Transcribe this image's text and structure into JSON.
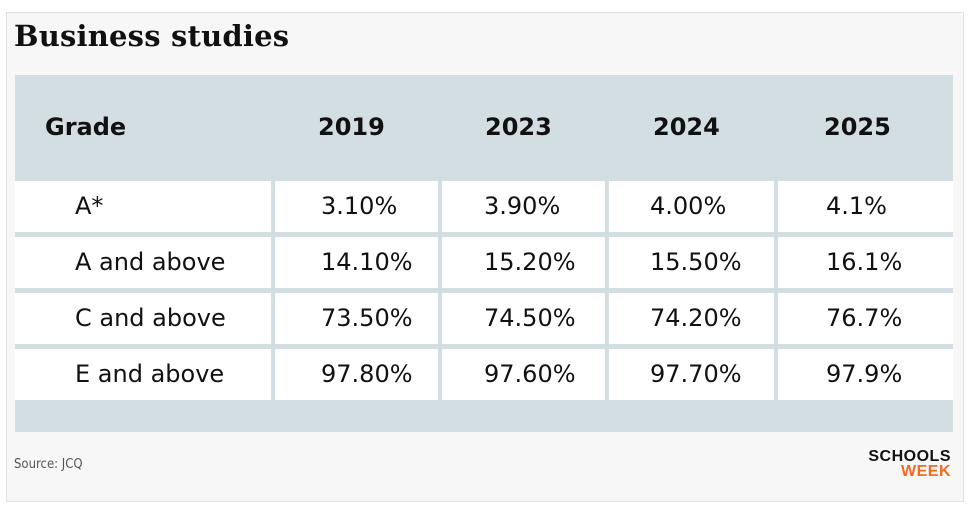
{
  "title": "Business studies",
  "source": "Source: JCQ",
  "brand": {
    "line1": "SCHOOLS",
    "line2": "WEEK",
    "accent": "#f26b21"
  },
  "colors": {
    "header_bg": "#d3dee3",
    "row_bg": "#ffffff",
    "card_bg": "#f7f7f7"
  },
  "chart_data": {
    "type": "table",
    "title": "Business studies",
    "columns": [
      "Grade",
      "2019",
      "2023",
      "2024",
      "2025"
    ],
    "rows": [
      [
        "A*",
        "3.10%",
        "3.90%",
        "4.00%",
        "4.1%"
      ],
      [
        "A and above",
        "14.10%",
        "15.20%",
        "15.50%",
        "16.1%"
      ],
      [
        "C and above",
        "73.50%",
        "74.50%",
        "74.20%",
        "76.7%"
      ],
      [
        "E and above",
        "97.80%",
        "97.60%",
        "97.70%",
        "97.9%"
      ]
    ]
  }
}
